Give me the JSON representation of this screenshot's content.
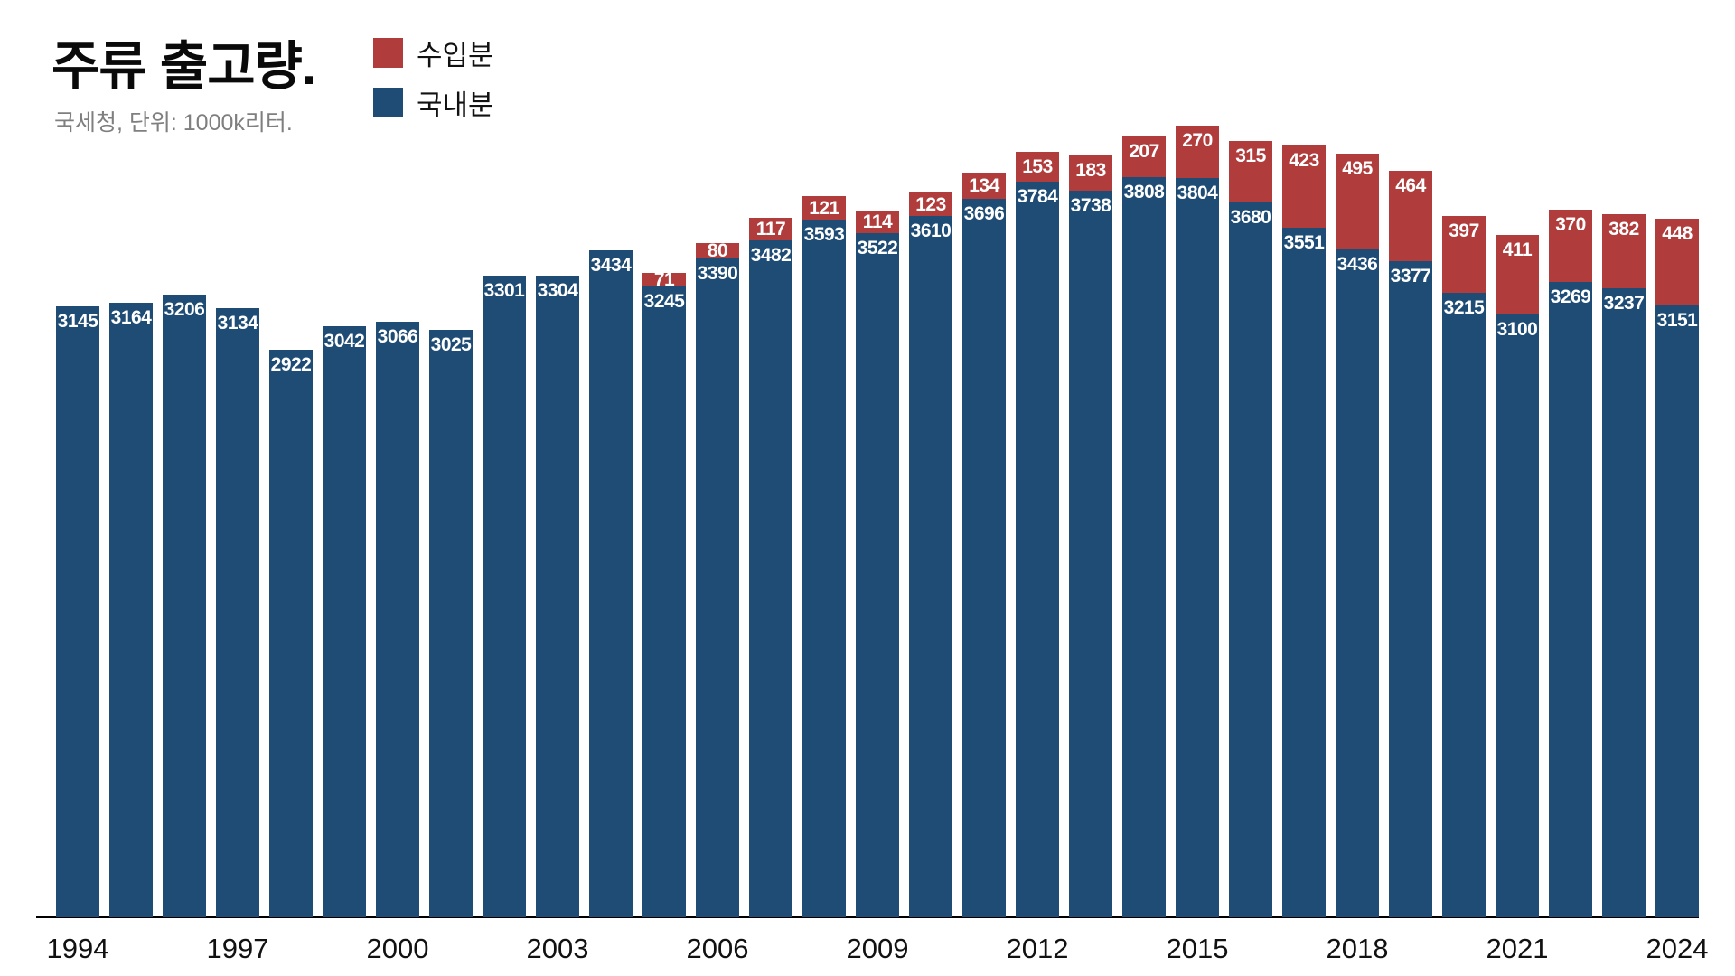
{
  "title": "주류 출고량.",
  "subtitle": "국세청, 단위: 1000k리터.",
  "legend": [
    {
      "label": "수입분",
      "color": "#b03c3c"
    },
    {
      "label": "국내분",
      "color": "#1e4c75"
    }
  ],
  "chart_data": {
    "type": "bar",
    "stacked": true,
    "title": "주류 출고량.",
    "source_note": "국세청, 단위: 1000k리터.",
    "x": [
      1994,
      1995,
      1996,
      1997,
      1998,
      1999,
      2000,
      2001,
      2002,
      2003,
      2004,
      2005,
      2006,
      2007,
      2008,
      2009,
      2010,
      2011,
      2012,
      2013,
      2014,
      2015,
      2016,
      2017,
      2018,
      2019,
      2020,
      2021,
      2022,
      2023,
      2024
    ],
    "series": [
      {
        "name": "국내분",
        "color": "#1e4c75",
        "values": [
          3145,
          3164,
          3206,
          3134,
          2922,
          3042,
          3066,
          3025,
          3301,
          3304,
          3434,
          3245,
          3390,
          3482,
          3593,
          3522,
          3610,
          3696,
          3784,
          3738,
          3808,
          3804,
          3680,
          3551,
          3436,
          3377,
          3215,
          3100,
          3269,
          3237,
          3151
        ]
      },
      {
        "name": "수입분",
        "color": "#b03c3c",
        "values": [
          0,
          0,
          0,
          0,
          0,
          0,
          0,
          0,
          0,
          0,
          0,
          71,
          80,
          117,
          121,
          114,
          123,
          134,
          153,
          183,
          207,
          270,
          315,
          423,
          495,
          464,
          397,
          411,
          370,
          382,
          448
        ]
      }
    ],
    "x_tick_labels": [
      "1994",
      "1997",
      "2000",
      "2003",
      "2006",
      "2009",
      "2012",
      "2015",
      "2018",
      "2021",
      "2024"
    ],
    "x_tick_positions": [
      0,
      3,
      6,
      9,
      12,
      15,
      18,
      21,
      24,
      27,
      30
    ],
    "legend_position": "top-left",
    "grid": false,
    "y_axis_shown": false,
    "value_labels": "white, inside top of each segment"
  }
}
